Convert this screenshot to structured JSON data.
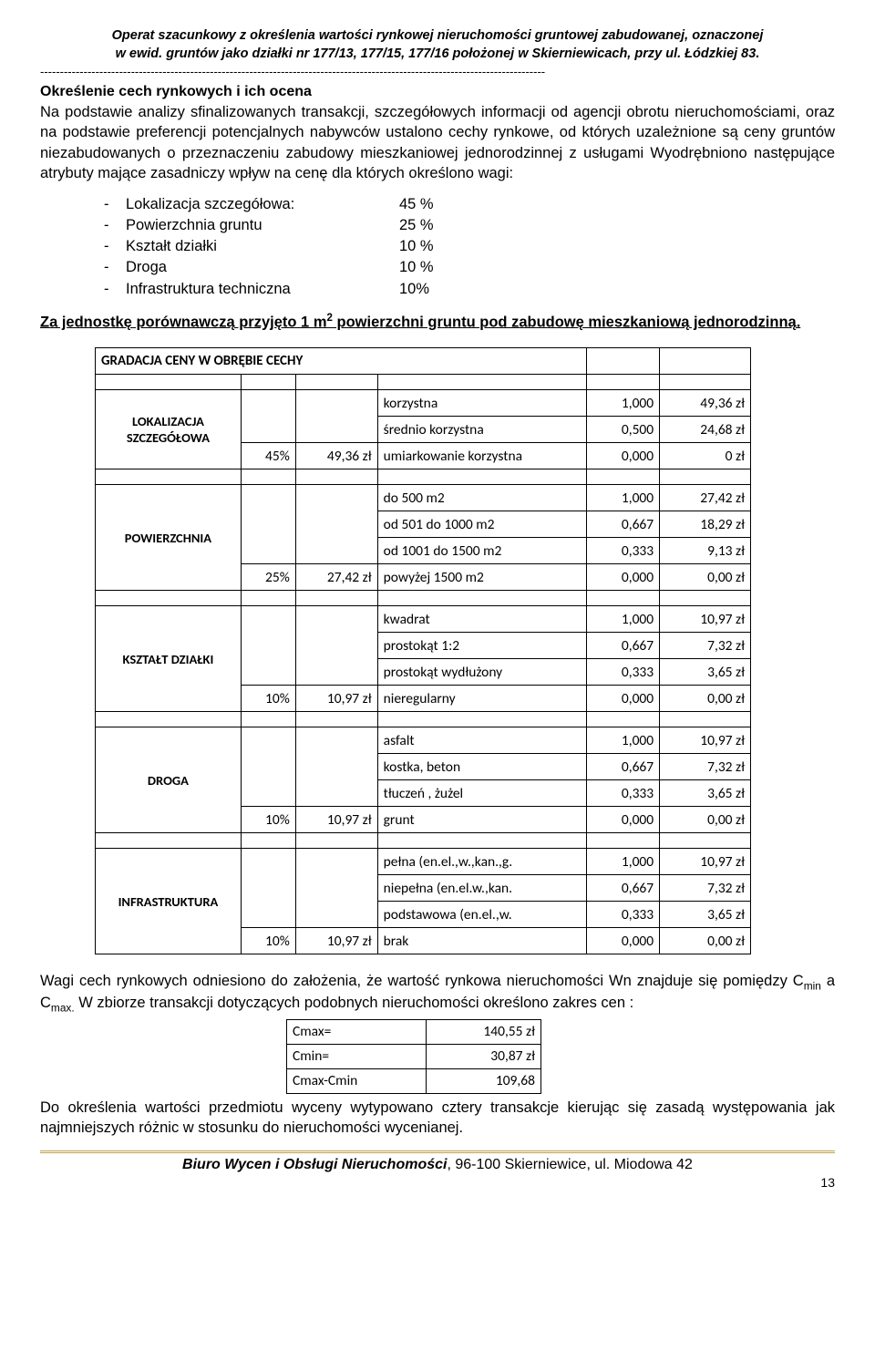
{
  "header": {
    "line1": "Operat szacunkowy z określenia wartości rynkowej nieruchomości gruntowej zabudowanej, oznaczonej",
    "line2": "w ewid. gruntów jako działki nr 177/13, 177/15, 177/16 położonej w Skierniewicach, przy ul. Łódzkiej 83."
  },
  "section_title": "Określenie cech rynkowych i ich ocena",
  "intro_para": "Na podstawie analizy sfinalizowanych transakcji, szczegółowych informacji od agencji obrotu nieruchomościami, oraz na podstawie preferencji potencjalnych nabywców ustalono cechy rynkowe, od których uzależnione są ceny gruntów niezabudowanych o przeznaczeniu zabudowy mieszkaniowej jednorodzinnej z usługami Wyodrębniono następujące atrybuty mające zasadniczy wpływ na cenę dla których określono wagi:",
  "attributes": [
    {
      "label": "Lokalizacja szczegółowa:",
      "value": "45 %"
    },
    {
      "label": "Powierzchnia gruntu",
      "value": "25 %"
    },
    {
      "label": "Kształt działki",
      "value": "10 %"
    },
    {
      "label": "Droga",
      "value": "10 %"
    },
    {
      "label": "Infrastruktura techniczna",
      "value": "10%"
    }
  ],
  "unit_text_pre": "Za jednostkę porównawczą przyjęto 1 m",
  "unit_text_post": " powierzchni gruntu pod zabudowę mieszkaniową jednorodzinną.",
  "table_title": "GRADACJA CENY W OBRĘBIE CECHY",
  "categories": [
    {
      "name": "LOKALIZACJA SZCZEGÓŁOWA",
      "pct": "45%",
      "zl": "49,36 zł",
      "rows": [
        {
          "desc": "korzystna",
          "coef": "1,000",
          "amt": "49,36 zł"
        },
        {
          "desc": "średnio korzystna",
          "coef": "0,500",
          "amt": "24,68 zł"
        },
        {
          "desc": "umiarkowanie korzystna",
          "coef": "0,000",
          "amt": "0 zł"
        }
      ]
    },
    {
      "name": "POWIERZCHNIA",
      "pct": "25%",
      "zl": "27,42 zł",
      "rows": [
        {
          "desc": "do 500 m2",
          "coef": "1,000",
          "amt": "27,42 zł"
        },
        {
          "desc": "od 501 do 1000 m2",
          "coef": "0,667",
          "amt": "18,29 zł"
        },
        {
          "desc": "od 1001 do 1500 m2",
          "coef": "0,333",
          "amt": "9,13 zł"
        },
        {
          "desc": "powyżej 1500 m2",
          "coef": "0,000",
          "amt": "0,00 zł"
        }
      ]
    },
    {
      "name": "KSZTAŁT DZIAŁKI",
      "pct": "10%",
      "zl": "10,97 zł",
      "rows": [
        {
          "desc": "kwadrat",
          "coef": "1,000",
          "amt": "10,97 zł"
        },
        {
          "desc": "prostokąt 1:2",
          "coef": "0,667",
          "amt": "7,32 zł"
        },
        {
          "desc": "prostokąt wydłużony",
          "coef": "0,333",
          "amt": "3,65 zł"
        },
        {
          "desc": "nieregularny",
          "coef": "0,000",
          "amt": "0,00 zł"
        }
      ]
    },
    {
      "name": "DROGA",
      "pct": "10%",
      "zl": "10,97 zł",
      "rows": [
        {
          "desc": "asfalt",
          "coef": "1,000",
          "amt": "10,97 zł"
        },
        {
          "desc": "kostka, beton",
          "coef": "0,667",
          "amt": "7,32 zł"
        },
        {
          "desc": "tłuczeń , żużel",
          "coef": "0,333",
          "amt": "3,65 zł"
        },
        {
          "desc": "grunt",
          "coef": "0,000",
          "amt": "0,00 zł"
        }
      ]
    },
    {
      "name": "INFRASTRUKTURA",
      "pct": "10%",
      "zl": "10,97 zł",
      "rows": [
        {
          "desc": "pełna (en.el.,w.,kan.,g.",
          "coef": "1,000",
          "amt": "10,97 zł"
        },
        {
          "desc": "niepełna (en.el.w.,kan.",
          "coef": "0,667",
          "amt": "7,32 zł"
        },
        {
          "desc": "podstawowa (en.el.,w.",
          "coef": "0,333",
          "amt": "3,65 zł"
        },
        {
          "desc": "brak",
          "coef": "0,000",
          "amt": "0,00 zł"
        }
      ]
    }
  ],
  "post_para": "Wagi cech rynkowych odniesiono do założenia, że wartość rynkowa nieruchomości Wn znajduje się pomiędzy C<sub>min</sub> a C<sub>max.</sub> W zbiorze transakcji dotyczących podobnych nieruchomości określono zakres cen :",
  "range": [
    {
      "label": "Cmax=",
      "value": "140,55 zł"
    },
    {
      "label": "Cmin=",
      "value": "30,87 zł"
    },
    {
      "label": "Cmax-Cmin",
      "value": "109,68"
    }
  ],
  "post_para2": "Do określenia wartości przedmiotu wyceny wytypowano cztery transakcje kierując się zasadą występowania jak najmniejszych różnic w stosunku do nieruchomości wycenianej.",
  "footer": {
    "biuro": "Biuro Wycen i Obsługi Nieruchomości",
    "addr": ", 96-100 Skierniewice, ul. Miodowa 42",
    "page": "13"
  },
  "colwidths": {
    "cat": "160px",
    "pct": "60px",
    "zl": "90px",
    "desc": "230px",
    "coef": "80px",
    "amt": "100px"
  }
}
